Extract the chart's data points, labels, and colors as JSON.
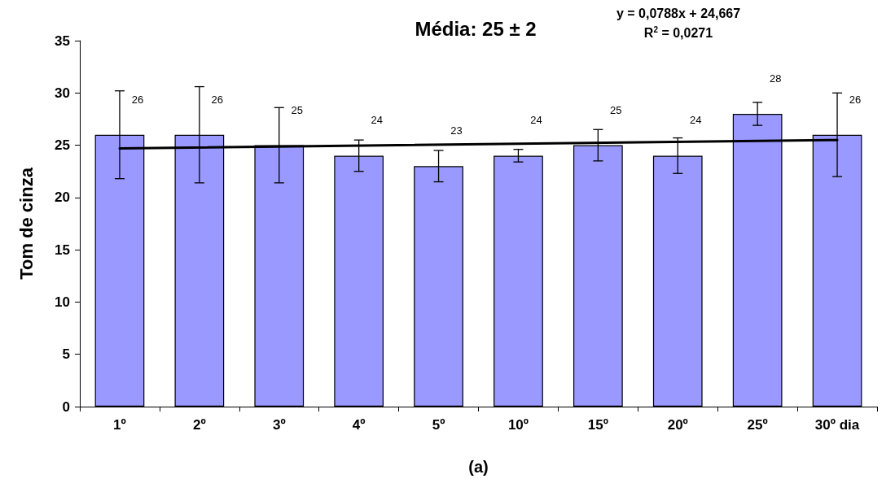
{
  "chart_data": {
    "type": "bar",
    "title": "Média: 25 ± 2",
    "xlabel": "(a)",
    "ylabel": "Tom de cinza",
    "annotations": [
      "y = 0,0788x + 24,667",
      "R$^{2}$ = 0,0271"
    ],
    "categories": [
      "1º",
      "2º",
      "3º",
      "4º",
      "5º",
      "10º",
      "15º",
      "20º",
      "25º",
      "30º dia"
    ],
    "series": [
      {
        "color": "#9999ff",
        "values": [
          26,
          26,
          25,
          24,
          23,
          24,
          25,
          24,
          28,
          26
        ],
        "errors": [
          4.2,
          4.6,
          3.6,
          1.5,
          1.5,
          0.6,
          1.5,
          1.7,
          1.1,
          4.0
        ],
        "value_labels": [
          "26",
          "26",
          "25",
          "24",
          "23",
          "24",
          "25",
          "24",
          "28",
          "26"
        ]
      },
      {
        "type": "line",
        "color": "#000000",
        "x": [
          "1º",
          "30º dia"
        ],
        "values": [
          24.7,
          25.5
        ]
      }
    ],
    "ylim": [
      0,
      35
    ],
    "yticks": [
      0,
      5,
      10,
      15,
      20,
      25,
      30,
      35
    ],
    "grid": false,
    "marker": "none",
    "line_style": "solid"
  }
}
